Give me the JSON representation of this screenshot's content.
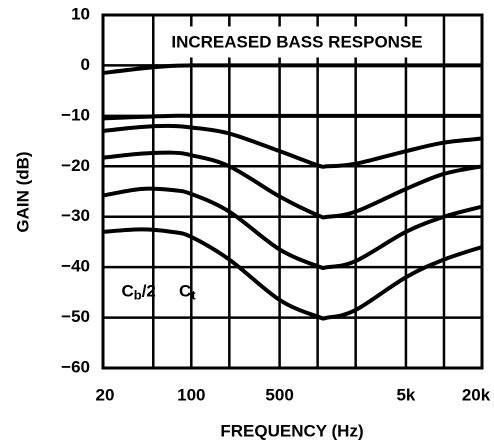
{
  "chart_data": {
    "type": "line",
    "title": "INCREASED BASS RESPONSE",
    "xlabel": "FREQUENCY (Hz)",
    "ylabel": "GAIN (dB)",
    "log_x": true,
    "grid": true,
    "x": [
      20,
      40,
      70,
      100,
      200,
      500,
      1000,
      1200,
      2000,
      5000,
      10000,
      20000
    ],
    "series": [
      {
        "color": "#000000",
        "values": [
          -1.5,
          -0.6,
          -0.1,
          0,
          0,
          0,
          0,
          0,
          0,
          0,
          0,
          0
        ]
      },
      {
        "color": "#000000",
        "values": [
          -10.5,
          -10.2,
          -10,
          -10,
          -10,
          -10,
          -10,
          -10,
          -10,
          -10,
          -10,
          -10
        ]
      },
      {
        "color": "#000000",
        "values": [
          -13,
          -12.2,
          -12,
          -12.3,
          -13.5,
          -17,
          -19.8,
          -20,
          -19.5,
          -17,
          -15.3,
          -14.5
        ]
      },
      {
        "color": "#000000",
        "values": [
          -18.3,
          -17.5,
          -17.3,
          -17.8,
          -20,
          -26,
          -29.7,
          -30,
          -29,
          -24.5,
          -21.5,
          -20
        ]
      },
      {
        "color": "#000000",
        "values": [
          -25.8,
          -24.5,
          -24.7,
          -25.5,
          -29,
          -36.5,
          -39.8,
          -40,
          -38.8,
          -33,
          -30,
          -28
        ]
      },
      {
        "color": "#000000",
        "values": [
          -33,
          -32.5,
          -33,
          -34,
          -38.5,
          -46.5,
          -49.8,
          -50,
          -48.5,
          -42,
          -38.5,
          -36
        ]
      }
    ],
    "xlim": [
      20,
      20000
    ],
    "xticks": [
      20,
      100,
      500,
      {
        "value": 5000,
        "label": "5k"
      },
      {
        "value": 20000,
        "label": "20k"
      }
    ],
    "xminor": [
      50,
      200,
      1000,
      2000,
      10000
    ],
    "ylim": [
      -60,
      10
    ],
    "yticks": [
      10,
      0,
      {
        "value": -10,
        "label": "−10"
      },
      {
        "value": -20,
        "label": "−20"
      },
      {
        "value": -30,
        "label": "−30"
      },
      {
        "value": -40,
        "label": "−40"
      },
      {
        "value": -50,
        "label": "−50"
      },
      {
        "value": -60,
        "label": "−60"
      }
    ],
    "annotations": [
      {
        "main": "C",
        "sub": "b",
        "suffix": "/2",
        "x": 28,
        "y": -45
      },
      {
        "main": "C",
        "sub": "t",
        "x": 80,
        "y": -45
      }
    ]
  }
}
